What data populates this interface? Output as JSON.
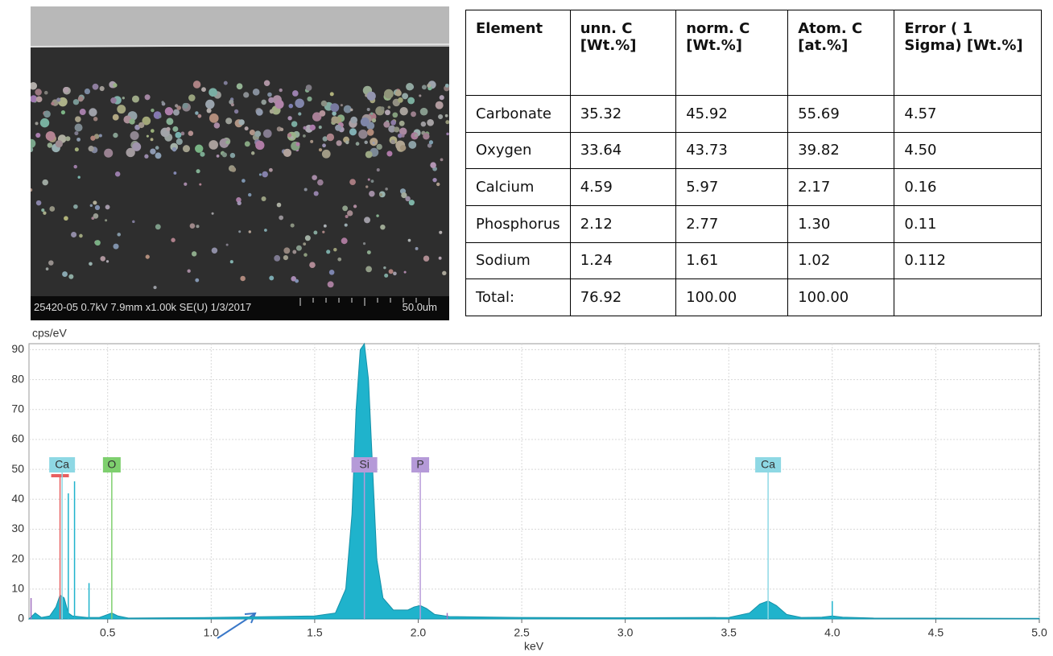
{
  "sem_image": {
    "caption": "25420-05 0.7kV 7.9mm x1.00k SE(U) 1/3/2017",
    "scale_label": "50.0um"
  },
  "table": {
    "header": [
      "Element",
      "unn. C [Wt.%]",
      "norm. C [Wt.%]",
      "Atom. C [at.%]",
      "Error ( 1 Sigma) [Wt.%]"
    ],
    "rows": [
      [
        "Carbonate",
        "35.32",
        "45.92",
        "55.69",
        "4.57"
      ],
      [
        "Oxygen",
        "33.64",
        "43.73",
        "39.82",
        "4.50"
      ],
      [
        "Calcium",
        "4.59",
        "5.97",
        "2.17",
        "0.16"
      ],
      [
        "Phosphorus",
        "2.12",
        "2.77",
        "1.30",
        "0.11"
      ],
      [
        "Sodium",
        "1.24",
        "1.61",
        "1.02",
        "0.112"
      ],
      [
        "Total:",
        "76.92",
        "100.00",
        "100.00"
      ]
    ]
  },
  "chart_data": {
    "type": "area",
    "y_label": "cps/eV",
    "x_label": "keV",
    "xlim": [
      0.12,
      5.0
    ],
    "ylim": [
      0,
      92
    ],
    "xticks": [
      0.5,
      {
        "value": 1,
        "label": "1.0"
      },
      1.5,
      {
        "value": 2,
        "label": "2.0"
      },
      2.5,
      {
        "value": 3,
        "label": "3.0"
      },
      3.5,
      {
        "value": 4,
        "label": "4.0"
      },
      4.5,
      {
        "value": 5,
        "label": "5.0"
      }
    ],
    "yticks": [
      0,
      10,
      20,
      30,
      40,
      50,
      60,
      70,
      80,
      90
    ],
    "grid": true,
    "series": [
      {
        "color": "#1fb3cc",
        "x": [
          0.12,
          0.15,
          0.18,
          0.22,
          0.25,
          0.27,
          0.29,
          0.31,
          0.33,
          0.4,
          0.46,
          0.5,
          0.52,
          0.55,
          0.6,
          1.0,
          1.3,
          1.5,
          1.6,
          1.65,
          1.68,
          1.7,
          1.72,
          1.74,
          1.76,
          1.78,
          1.8,
          1.83,
          1.88,
          1.95,
          1.98,
          2.01,
          2.04,
          2.08,
          2.15,
          2.5,
          3.0,
          3.5,
          3.6,
          3.65,
          3.69,
          3.73,
          3.78,
          3.85,
          3.95,
          4.0,
          4.05,
          4.2,
          5.0
        ],
        "values": [
          0,
          2,
          0.5,
          1,
          4,
          8,
          7,
          2,
          1,
          0.5,
          0.5,
          1.5,
          2,
          1,
          0.3,
          0.5,
          0.8,
          1,
          2,
          10,
          35,
          70,
          90,
          92,
          80,
          50,
          20,
          7,
          3,
          3,
          4,
          4.5,
          3.5,
          1.5,
          0.8,
          0.5,
          0.4,
          0.5,
          2,
          5,
          6,
          4.5,
          1.5,
          0.5,
          0.6,
          1,
          0.6,
          0.3,
          0.2
        ]
      }
    ],
    "spikes": {
      "x": [
        0.13,
        0.31,
        0.34,
        0.41,
        2.14,
        4.0
      ],
      "values": [
        7,
        42,
        46,
        12,
        2,
        6
      ],
      "colors": [
        "#a070c0",
        "#1fb3cc",
        "#1fb3cc",
        "#1fb3cc",
        "#a070c0",
        "#1fb3cc"
      ]
    },
    "markers": [
      {
        "label": null,
        "x": 0.27,
        "color": "#e86060"
      },
      {
        "label": "Ca",
        "x": 0.28,
        "color": "#8ed8e4"
      },
      {
        "label": "O",
        "x": 0.52,
        "color": "#7ecf6e"
      },
      {
        "label": "Si",
        "x": 1.74,
        "color": "#b59ad8"
      },
      {
        "label": "P",
        "x": 2.01,
        "color": "#b59ad8"
      },
      {
        "label": "Ca",
        "x": 3.69,
        "color": "#8ed8e4"
      }
    ]
  }
}
